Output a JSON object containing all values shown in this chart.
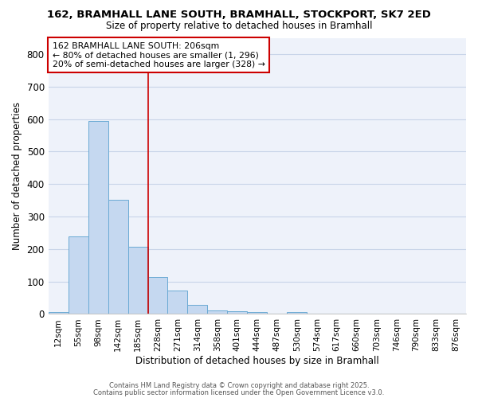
{
  "title1": "162, BRAMHALL LANE SOUTH, BRAMHALL, STOCKPORT, SK7 2ED",
  "title2": "Size of property relative to detached houses in Bramhall",
  "xlabel": "Distribution of detached houses by size in Bramhall",
  "ylabel": "Number of detached properties",
  "bar_color": "#c5d8f0",
  "bar_edge_color": "#6aaad4",
  "categories": [
    "12sqm",
    "55sqm",
    "98sqm",
    "142sqm",
    "185sqm",
    "228sqm",
    "271sqm",
    "314sqm",
    "358sqm",
    "401sqm",
    "444sqm",
    "487sqm",
    "530sqm",
    "574sqm",
    "617sqm",
    "660sqm",
    "703sqm",
    "746sqm",
    "790sqm",
    "833sqm",
    "876sqm"
  ],
  "values": [
    5,
    238,
    595,
    352,
    207,
    115,
    72,
    27,
    12,
    8,
    5,
    1,
    5,
    0,
    0,
    0,
    0,
    0,
    0,
    0,
    0
  ],
  "ylim": [
    0,
    850
  ],
  "yticks": [
    0,
    100,
    200,
    300,
    400,
    500,
    600,
    700,
    800
  ],
  "annotation_box_text": "162 BRAMHALL LANE SOUTH: 206sqm\n← 80% of detached houses are smaller (1, 296)\n20% of semi-detached houses are larger (328) →",
  "vline_x": 4.5,
  "annotation_color": "#cc0000",
  "vline_color": "#cc0000",
  "background_color": "#eef2fa",
  "grid_color": "#c8d4e8",
  "footer1": "Contains HM Land Registry data © Crown copyright and database right 2025.",
  "footer2": "Contains public sector information licensed under the Open Government Licence v3.0."
}
